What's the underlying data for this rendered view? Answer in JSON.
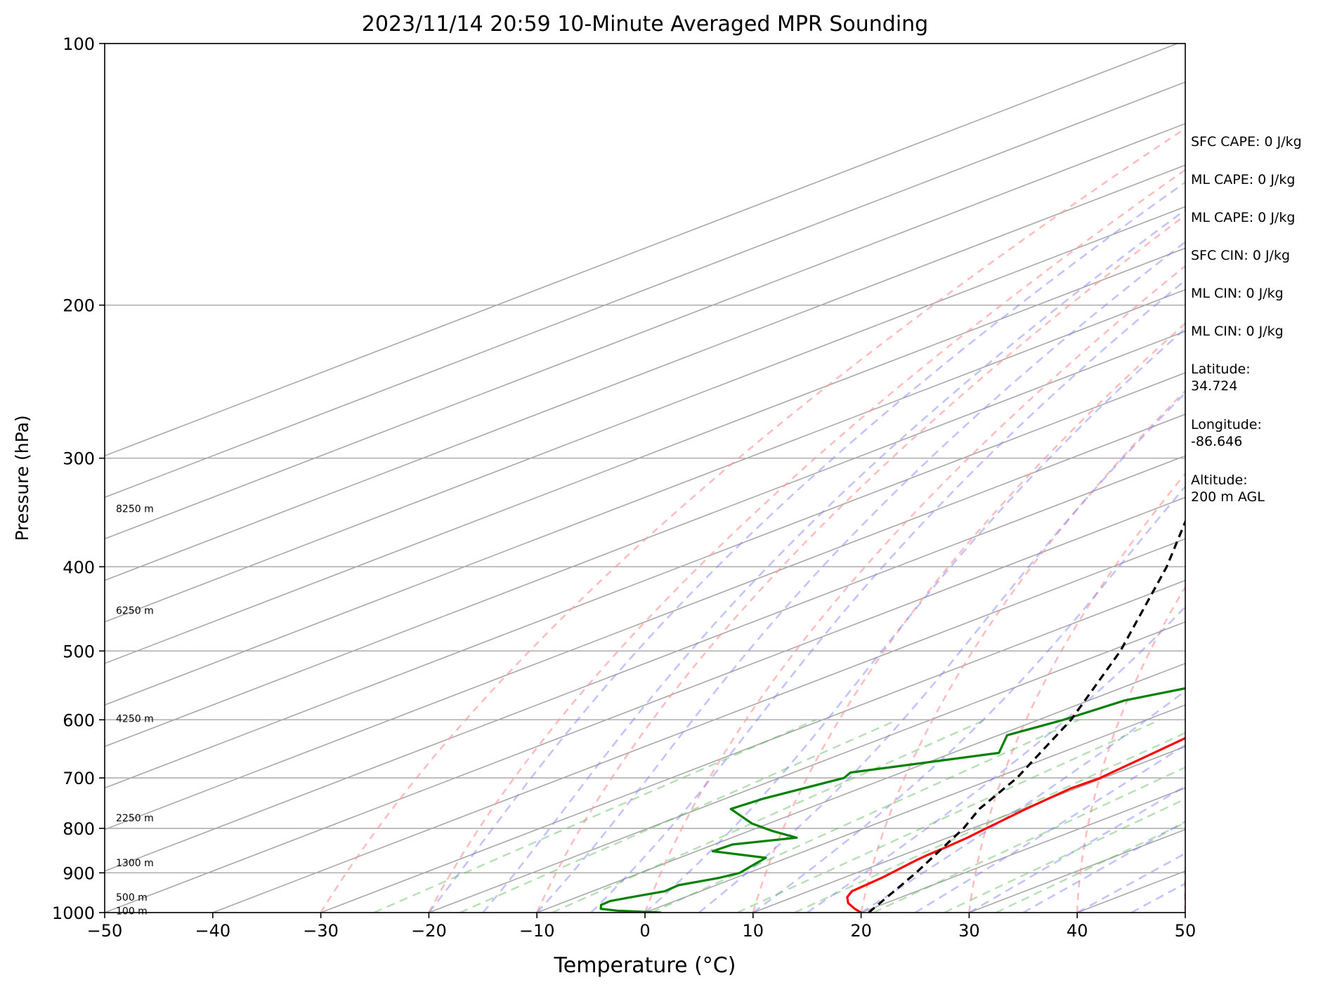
{
  "chart_data": {
    "type": "line",
    "title": "2023/11/14 20:59 10-Minute Averaged MPR Sounding",
    "xlabel": "Temperature (°C)",
    "ylabel": "Pressure (hPa)",
    "xlim": [
      -50,
      50
    ],
    "ylim": [
      1000,
      100
    ],
    "y_scale": "log",
    "skew": "skew-T (isotherms slanted)",
    "x_ticks": [
      "−50",
      "−40",
      "−30",
      "−20",
      "−10",
      "0",
      "10",
      "20",
      "30",
      "40",
      "50"
    ],
    "x_tick_values": [
      -50,
      -40,
      -30,
      -20,
      -10,
      0,
      10,
      20,
      30,
      40,
      50
    ],
    "y_ticks": [
      "100",
      "200",
      "300",
      "400",
      "500",
      "600",
      "700",
      "800",
      "900",
      "1000"
    ],
    "y_tick_values": [
      100,
      200,
      300,
      400,
      500,
      600,
      700,
      800,
      900,
      1000
    ],
    "grid": true,
    "height_labels": [
      {
        "text": "8250 m",
        "p": 343
      },
      {
        "text": "6250 m",
        "p": 449
      },
      {
        "text": "4250 m",
        "p": 598
      },
      {
        "text": "2250 m",
        "p": 778
      },
      {
        "text": "1300 m",
        "p": 876
      },
      {
        "text": "500 m",
        "p": 960
      },
      {
        "text": "100 m",
        "p": 995
      }
    ],
    "series": [
      {
        "color": "#ff0000",
        "p": [
          1000,
          990,
          975,
          960,
          945,
          930,
          910,
          890,
          870,
          860,
          840,
          820,
          800,
          760,
          720,
          700,
          650,
          600,
          550,
          500,
          450,
          400,
          370,
          340,
          320,
          300,
          285,
          272
        ],
        "t": [
          20.0,
          18.5,
          16.5,
          15.0,
          14.0,
          13.8,
          13.5,
          13.0,
          12.5,
          12.3,
          12.1,
          11.8,
          11.3,
          10.3,
          9.5,
          9.7,
          8.5,
          7.2,
          5.5,
          4.0,
          2.3,
          0.2,
          -0.7,
          -1.6,
          -2.7,
          -4.0,
          -5.5,
          -7.3
        ]
      },
      {
        "color": "#008000",
        "p": [
          1000,
          995,
          990,
          980,
          970,
          960,
          945,
          930,
          912,
          900,
          880,
          865,
          850,
          835,
          820,
          805,
          790,
          760,
          740,
          700,
          690,
          655,
          625,
          600,
          570,
          550,
          530,
          500,
          480,
          455,
          440,
          425,
          410,
          395,
          385,
          365,
          355,
          345,
          335,
          325,
          316,
          308,
          300
        ],
        "t": [
          1.5,
          -3.0,
          -5.0,
          -5.9,
          -6.0,
          -5.0,
          -3.3,
          -3.5,
          -1.5,
          -0.8,
          -1.5,
          -2.0,
          -8.5,
          -8.3,
          -4.0,
          -8.0,
          -11.5,
          -17.0,
          -16.5,
          -14.0,
          -14.7,
          -5.7,
          -9.2,
          -7.7,
          -6.7,
          -3.7,
          -1.8,
          -2.0,
          -3.0,
          -5.0,
          -5.7,
          -3.5,
          -7.5,
          -11.0,
          -13.5,
          -16.3,
          -16.1,
          -19.1,
          -24.5,
          -34.0,
          -24.9,
          -33.0,
          -44.0
        ]
      },
      {
        "color": "#000000",
        "dashed": true,
        "p": [
          1000,
          900,
          800,
          760,
          700,
          600,
          500,
          400,
          300,
          265
        ],
        "t": [
          20.7,
          15.5,
          9.2,
          6.0,
          2.0,
          -7.0,
          -19.0,
          -35.0,
          -57.0,
          -66.5
        ]
      }
    ]
  },
  "info_panel": [
    "SFC CAPE: 0 J/kg",
    "ML CAPE: 0 J/kg",
    "ML CAPE: 0 J/kg",
    "SFC CIN: 0 J/kg",
    "ML CIN: 0 J/kg",
    "ML CIN: 0 J/kg",
    "Latitude:\n34.724",
    "Longitude:\n-86.646",
    "Altitude:\n200 m AGL"
  ]
}
